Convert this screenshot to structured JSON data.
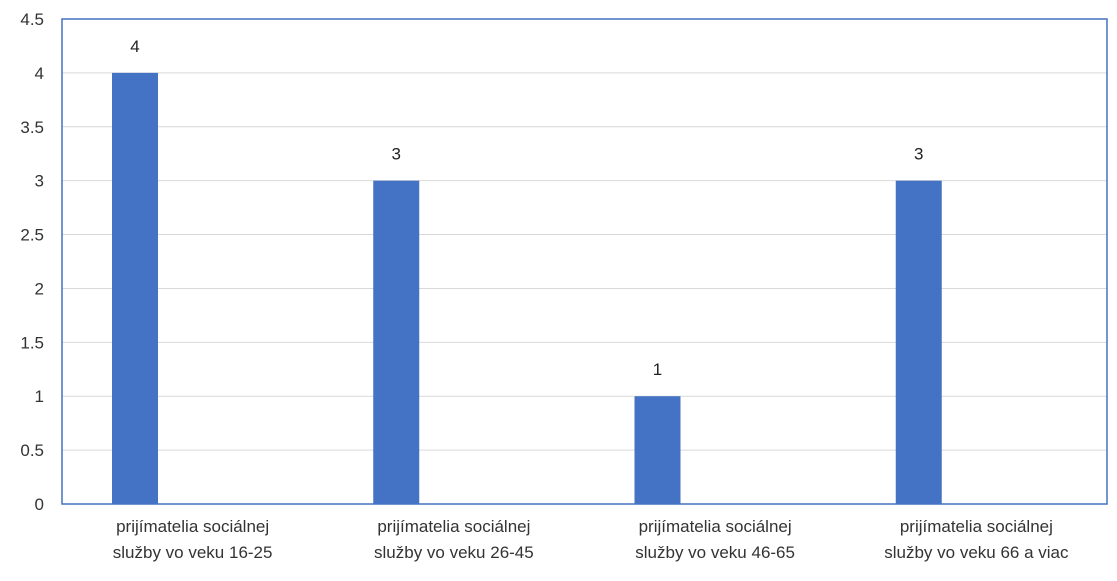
{
  "chart_data": {
    "type": "bar",
    "categories": [
      [
        "prijímatelia sociálnej",
        "služby vo veku 16-25"
      ],
      [
        "prijímatelia sociálnej",
        "služby vo veku 26-45"
      ],
      [
        "prijímatelia sociálnej",
        "služby vo veku 46-65"
      ],
      [
        "prijímatelia sociálnej",
        "služby vo veku 66 a viac"
      ]
    ],
    "values": [
      4,
      3,
      1,
      3
    ],
    "data_labels": [
      "4",
      "3",
      "1",
      "3"
    ],
    "y_ticks": [
      "0",
      "0.5",
      "1",
      "1.5",
      "2",
      "2.5",
      "3",
      "3.5",
      "4",
      "4.5"
    ],
    "ylim": [
      0,
      4.5
    ],
    "title": "",
    "xlabel": "",
    "ylabel": "",
    "grid": true,
    "legend": "none",
    "colors": {
      "bar": "#4472C4",
      "gridline": "#D9D9D9",
      "plot_border": "#4472C4"
    }
  }
}
